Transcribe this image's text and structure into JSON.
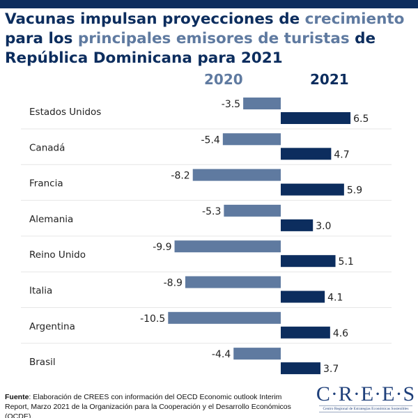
{
  "title": {
    "part1": "Vacunas impulsan proyecciones de ",
    "hl1": "crecimiento",
    "part2": " para los ",
    "hl2": "principales emisores de turistas",
    "part3": " de República Dominicana para 2021"
  },
  "colors": {
    "s2020": "#5f7aa0",
    "s2021": "#0c2d5e"
  },
  "chart_data": {
    "type": "bar",
    "orientation": "horizontal",
    "title": "Vacunas impulsan proyecciones de crecimiento para los principales emisores de turistas de República Dominicana para 2021",
    "categories": [
      "Estados Unidos",
      "Canadá",
      "Francia",
      "Alemania",
      "Reino Unido",
      "Italia",
      "Argentina",
      "Brasil"
    ],
    "series": [
      {
        "name": "2020",
        "values": [
          -3.5,
          -5.4,
          -8.2,
          -5.3,
          -9.9,
          -8.9,
          -10.5,
          -4.4
        ],
        "labels": [
          "-3.5",
          "-5.4",
          "-8.2",
          "-5.3",
          "-9.9",
          "-8.9",
          "-10.5",
          "-4.4"
        ]
      },
      {
        "name": "2021",
        "values": [
          6.5,
          4.7,
          5.9,
          3.0,
          5.1,
          4.1,
          4.6,
          3.7
        ],
        "labels": [
          "6.5",
          "4.7",
          "5.9",
          "3.0",
          "5.1",
          "4.1",
          "4.6",
          "3.7"
        ]
      }
    ],
    "legend": "top"
  },
  "footer": {
    "label": "Fuente",
    "text": ": Elaboración de CREES con información del OECD Economic outlook Interim Report, Marzo 2021 de la Organización para la Cooperación y el Desarrollo Económicos (OCDE)."
  },
  "logo": {
    "name": "C·R·E·E·S",
    "subtitle": "Centro Regional de Estrategias Económicas Sostenibles"
  }
}
